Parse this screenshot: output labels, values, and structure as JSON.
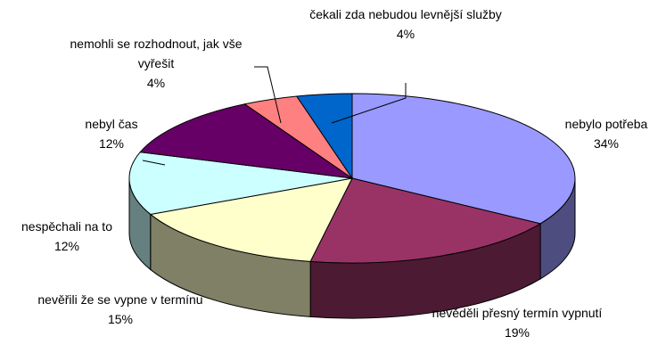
{
  "chart_data": {
    "type": "pie",
    "categories": [
      "nebylo potřeba",
      "nevěděli přesný termín vypnutí",
      "nevěřili že se vypne v termínu",
      "nespěchali na to",
      "nebyl čas",
      "nemohli se rozhodnout, jak vše vyřešit",
      "čekali zda nebudou levnější služby"
    ],
    "values": [
      34,
      19,
      15,
      12,
      12,
      4,
      4
    ],
    "value_labels": [
      "34%",
      "19%",
      "15%",
      "12%",
      "12%",
      "4%",
      "4%"
    ],
    "colors": [
      "#9999ff",
      "#993366",
      "#ffffcc",
      "#ccffff",
      "#660066",
      "#ff8080",
      "#0066cc"
    ]
  }
}
